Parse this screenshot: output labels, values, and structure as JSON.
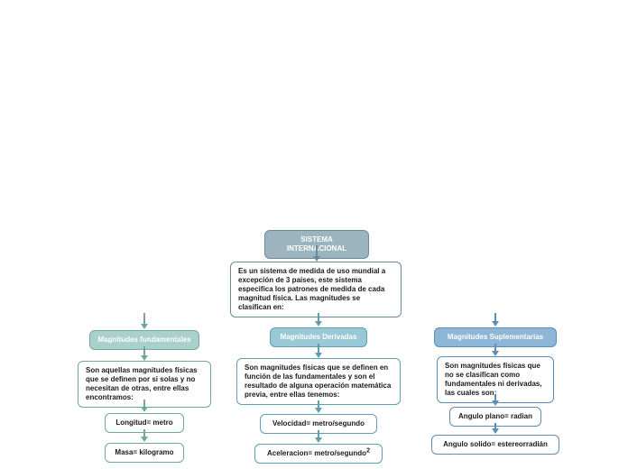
{
  "colors": {
    "root_bg": "#9bb4c0",
    "root_border": "#6b8a99",
    "root_text": "#ffffff",
    "desc_bg": "#ffffff",
    "desc_border": "#6b8a99",
    "desc_text": "#1a1a1a",
    "fund_bg": "#a9d0cb",
    "fund_border": "#6fa79e",
    "fund_text": "#ffffff",
    "deriv_bg": "#99c9d6",
    "deriv_border": "#5f9db0",
    "deriv_text": "#ffffff",
    "supl_bg": "#8eb6d6",
    "supl_border": "#5e8db5",
    "supl_text": "#ffffff",
    "leaf_bg": "#ffffff",
    "arrow_root": "#6b8a99",
    "arrow_fund": "#6fa79e",
    "arrow_deriv": "#5f9db0",
    "arrow_supl": "#5e8db5"
  },
  "root": {
    "title": "SISTEMA INTERNACIONAL",
    "desc": "Es un sistema de medida de uso mundial a excepción de 3 países, este sistema especifica los patrones de medida de cada magnitud física. Las magnitudes se clasifican en:"
  },
  "branches": {
    "fund": {
      "title": "Magnitudes fundamentales",
      "desc": "Son aquellas magnitudes físicas que se definen por si solas y no necesitan de otras, entre ellas encontramos:",
      "leaves": [
        "Longitud= metro",
        "Masa= kilogramo"
      ]
    },
    "deriv": {
      "title": "Magnitudes Derivadas",
      "desc": "Son magnitudes físicas que se definen en función de las fundamentales y son el resultado de alguna operación matemática previa, entre ellas tenemos:",
      "leaves": [
        "Velocidad= metro/segundo"
      ],
      "leaf2_pre": "Aceleracion= metro/segundo",
      "leaf2_sup": "2"
    },
    "supl": {
      "title": "Magnitudes Suplementarias",
      "desc": "Son magnitudes físicas que no se clasifican como fundamentales ni derivadas, las cuales son:",
      "leaves": [
        "Angulo plano= radian",
        "Angulo solido= estereorradián"
      ]
    }
  }
}
